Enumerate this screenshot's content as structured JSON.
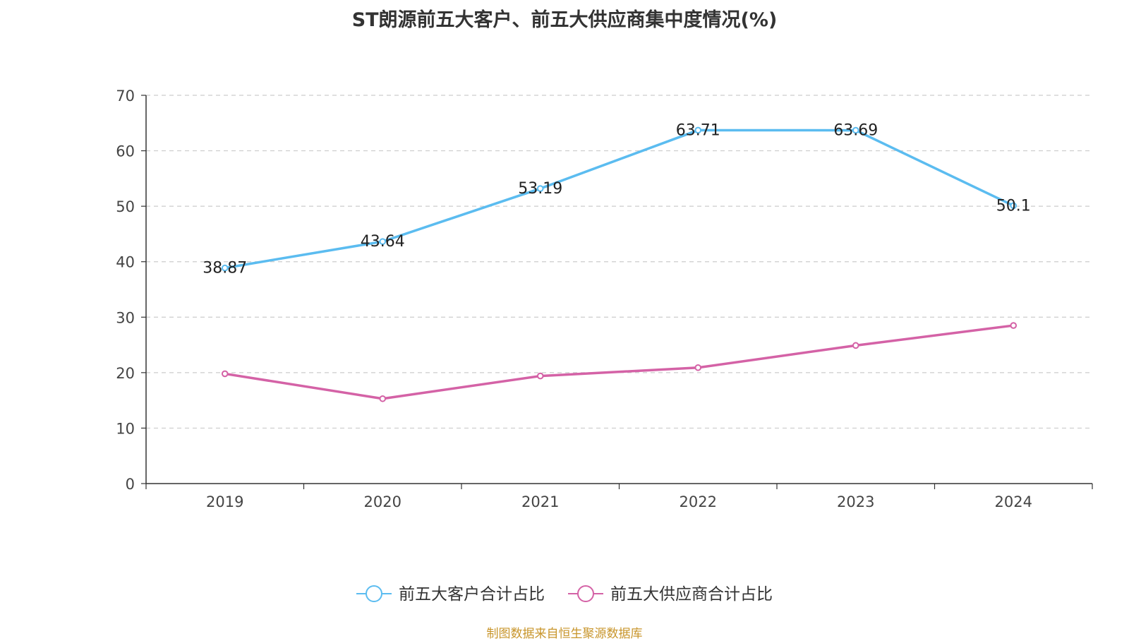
{
  "chart_data": {
    "type": "line",
    "title": "ST朗源前五大客户、前五大供应商集中度情况(%)",
    "categories": [
      "2019",
      "2020",
      "2021",
      "2022",
      "2023",
      "2024"
    ],
    "ylim": [
      0,
      70
    ],
    "yticks": [
      0,
      10,
      20,
      30,
      40,
      50,
      60,
      70
    ],
    "grid": true,
    "legend_position": "bottom-center",
    "series": [
      {
        "name": "前五大客户合计占比",
        "color": "#5bbcf0",
        "values": [
          38.87,
          43.64,
          53.19,
          63.71,
          63.69,
          50.1
        ],
        "labels": [
          "38.87",
          "43.64",
          "53.19",
          "63.71",
          "63.69",
          "50.1"
        ]
      },
      {
        "name": "前五大供应商合计占比",
        "color": "#d462a6",
        "values": [
          19.8,
          15.3,
          19.4,
          20.9,
          24.9,
          28.5
        ]
      }
    ]
  },
  "source_note": "制图数据来自恒生聚源数据库"
}
